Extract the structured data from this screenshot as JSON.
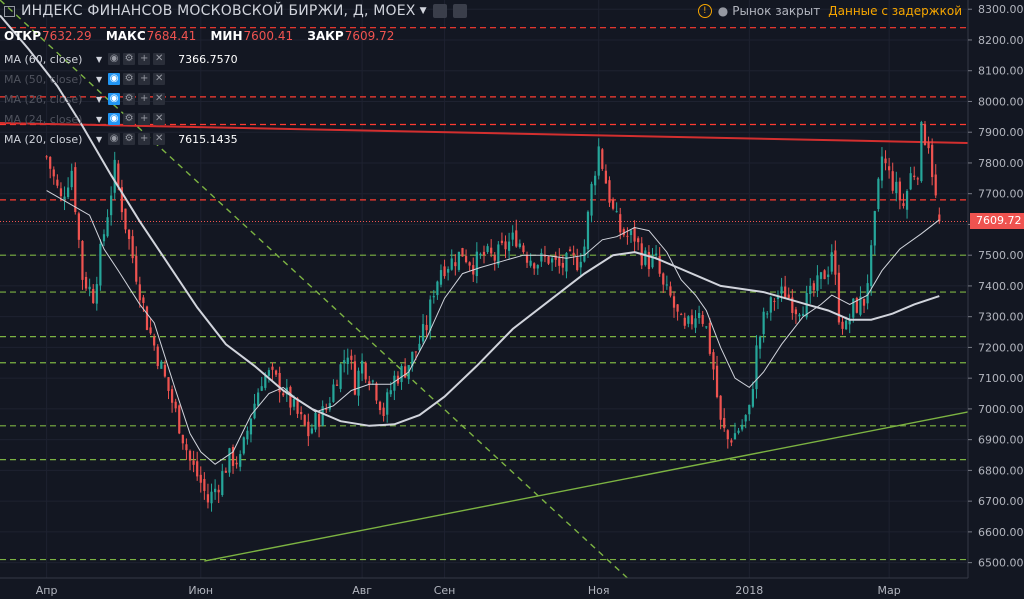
{
  "header": {
    "title": "ИНДЕКС ФИНАНСОВ МОСКОВСКОЙ БИРЖИ, Д, MOEX",
    "ohlc": [
      {
        "key": "ОТКР",
        "value": "7632.29"
      },
      {
        "key": "МАКС",
        "value": "7684.41"
      },
      {
        "key": "МИН",
        "value": "7600.41"
      },
      {
        "key": "ЗАКР",
        "value": "7609.72"
      }
    ]
  },
  "status": {
    "market": "Рынок закрыт",
    "delay": "Данные с задержкой"
  },
  "indicators": [
    {
      "name": "MA (60, close)",
      "value": "7366.7570",
      "visible": true
    },
    {
      "name": "MA (50, close)",
      "value": "",
      "visible": false
    },
    {
      "name": "MA (26, close)",
      "value": "",
      "visible": false
    },
    {
      "name": "MA (24, close)",
      "value": "",
      "visible": false
    },
    {
      "name": "MA (20, close)",
      "value": "7615.1435",
      "visible": true
    }
  ],
  "colors": {
    "background": "#131722",
    "up": "#26a69a",
    "down": "#ef5350",
    "ma": "#d1d4dc",
    "red_level": "#ff3b30",
    "green_level": "#7cb342",
    "trend_up": "#7cb342",
    "trend_down": "#d32f2f"
  },
  "chart_data": {
    "type": "candlestick",
    "instrument": "MOEX",
    "timeframe": "Д",
    "last_close": 7609.72,
    "last_price_label": "7609.72",
    "y_ticks": [
      6500,
      6600,
      6700,
      6800,
      6900,
      7000,
      7100,
      7200,
      7300,
      7400,
      7500,
      7600,
      7700,
      7800,
      7900,
      8000,
      8100,
      8200,
      8300
    ],
    "y_tick_labels": [
      "6500.00",
      "6600.00",
      "6700.00",
      "6800.00",
      "6900.00",
      "7000.00",
      "7100.00",
      "7200.00",
      "7300.00",
      "7400.00",
      "7500.00",
      "7600.00",
      "7700.00",
      "7800.00",
      "7900.00",
      "8000.00",
      "8100.00",
      "8200.00",
      "8300.00"
    ],
    "x_labels": [
      {
        "label": "Апр",
        "day": 0
      },
      {
        "label": "Июн",
        "day": 43
      },
      {
        "label": "Авг",
        "day": 88
      },
      {
        "label": "Сен",
        "day": 111
      },
      {
        "label": "Ноя",
        "day": 154
      },
      {
        "label": "2018",
        "day": 196
      },
      {
        "label": "Мар",
        "day": 235
      }
    ],
    "ylim": [
      6450,
      8330
    ],
    "xlim": [
      -13,
      257
    ],
    "red_levels": [
      8240,
      8015,
      7925,
      7680
    ],
    "green_levels": [
      7500,
      7380,
      7235,
      7150,
      6945,
      6835,
      6510
    ],
    "trendlines": [
      {
        "name": "support",
        "color": "green",
        "from": [
          44,
          6505
        ],
        "to": [
          257,
          6990
        ]
      },
      {
        "name": "resistance",
        "color": "red",
        "from": [
          -13,
          7930
        ],
        "to": [
          257,
          7865
        ]
      },
      {
        "name": "downtrend",
        "color": "green",
        "dashed": true,
        "from": [
          -13,
          8330
        ],
        "to": [
          162,
          6450
        ]
      }
    ],
    "price_path": [
      [
        0,
        7820
      ],
      [
        4,
        7680
      ],
      [
        7,
        7780
      ],
      [
        10,
        7430
      ],
      [
        13,
        7370
      ],
      [
        17,
        7640
      ],
      [
        19,
        7780
      ],
      [
        22,
        7600
      ],
      [
        25,
        7440
      ],
      [
        28,
        7280
      ],
      [
        31,
        7170
      ],
      [
        34,
        7060
      ],
      [
        37,
        6950
      ],
      [
        40,
        6830
      ],
      [
        43,
        6760
      ],
      [
        45,
        6700
      ],
      [
        48,
        6760
      ],
      [
        51,
        6840
      ],
      [
        54,
        6830
      ],
      [
        57,
        6980
      ],
      [
        60,
        7100
      ],
      [
        62,
        7110
      ],
      [
        65,
        7080
      ],
      [
        68,
        7020
      ],
      [
        70,
        6980
      ],
      [
        73,
        6920
      ],
      [
        75,
        6960
      ],
      [
        78,
        7000
      ],
      [
        81,
        7110
      ],
      [
        84,
        7190
      ],
      [
        86,
        7080
      ],
      [
        88,
        7150
      ],
      [
        91,
        7090
      ],
      [
        94,
        6990
      ],
      [
        97,
        7100
      ],
      [
        100,
        7130
      ],
      [
        103,
        7190
      ],
      [
        106,
        7270
      ],
      [
        108,
        7390
      ],
      [
        110,
        7460
      ],
      [
        113,
        7480
      ],
      [
        116,
        7510
      ],
      [
        119,
        7470
      ],
      [
        122,
        7500
      ],
      [
        125,
        7490
      ],
      [
        128,
        7530
      ],
      [
        131,
        7560
      ],
      [
        134,
        7500
      ],
      [
        137,
        7480
      ],
      [
        140,
        7490
      ],
      [
        143,
        7460
      ],
      [
        146,
        7480
      ],
      [
        148,
        7480
      ],
      [
        150,
        7530
      ],
      [
        152,
        7720
      ],
      [
        154,
        7850
      ],
      [
        156,
        7740
      ],
      [
        158,
        7640
      ],
      [
        160,
        7580
      ],
      [
        162,
        7560
      ],
      [
        164,
        7560
      ],
      [
        166,
        7500
      ],
      [
        168,
        7480
      ],
      [
        170,
        7480
      ],
      [
        172,
        7390
      ],
      [
        174,
        7360
      ],
      [
        176,
        7300
      ],
      [
        178,
        7250
      ],
      [
        180,
        7290
      ],
      [
        182,
        7330
      ],
      [
        184,
        7260
      ],
      [
        186,
        7130
      ],
      [
        188,
        6950
      ],
      [
        190,
        6900
      ],
      [
        192,
        6920
      ],
      [
        194,
        6950
      ],
      [
        196,
        6990
      ],
      [
        198,
        7190
      ],
      [
        200,
        7290
      ],
      [
        203,
        7360
      ],
      [
        206,
        7380
      ],
      [
        209,
        7330
      ],
      [
        212,
        7350
      ],
      [
        215,
        7400
      ],
      [
        218,
        7460
      ],
      [
        219,
        7520
      ],
      [
        221,
        7310
      ],
      [
        223,
        7260
      ],
      [
        225,
        7330
      ],
      [
        228,
        7350
      ],
      [
        230,
        7500
      ],
      [
        232,
        7720
      ],
      [
        233,
        7820
      ],
      [
        235,
        7760
      ],
      [
        237,
        7710
      ],
      [
        239,
        7660
      ],
      [
        241,
        7760
      ],
      [
        243,
        7780
      ],
      [
        244,
        7900
      ],
      [
        246,
        7870
      ],
      [
        248,
        7680
      ],
      [
        249,
        7609.72
      ]
    ],
    "ma20": [
      [
        0,
        7710
      ],
      [
        12,
        7630
      ],
      [
        16,
        7520
      ],
      [
        20,
        7450
      ],
      [
        26,
        7340
      ],
      [
        30,
        7280
      ],
      [
        36,
        7060
      ],
      [
        40,
        6920
      ],
      [
        43,
        6860
      ],
      [
        47,
        6820
      ],
      [
        52,
        6860
      ],
      [
        57,
        6980
      ],
      [
        62,
        7050
      ],
      [
        66,
        7070
      ],
      [
        70,
        7030
      ],
      [
        75,
        6990
      ],
      [
        80,
        7010
      ],
      [
        85,
        7060
      ],
      [
        90,
        7080
      ],
      [
        96,
        7080
      ],
      [
        101,
        7120
      ],
      [
        106,
        7230
      ],
      [
        111,
        7360
      ],
      [
        116,
        7440
      ],
      [
        121,
        7460
      ],
      [
        127,
        7480
      ],
      [
        133,
        7500
      ],
      [
        139,
        7500
      ],
      [
        145,
        7490
      ],
      [
        150,
        7500
      ],
      [
        155,
        7550
      ],
      [
        159,
        7560
      ],
      [
        164,
        7590
      ],
      [
        168,
        7580
      ],
      [
        173,
        7510
      ],
      [
        177,
        7420
      ],
      [
        181,
        7370
      ],
      [
        184,
        7320
      ],
      [
        188,
        7200
      ],
      [
        192,
        7100
      ],
      [
        196,
        7070
      ],
      [
        200,
        7120
      ],
      [
        205,
        7210
      ],
      [
        211,
        7300
      ],
      [
        216,
        7340
      ],
      [
        219,
        7370
      ],
      [
        224,
        7340
      ],
      [
        229,
        7370
      ],
      [
        233,
        7450
      ],
      [
        238,
        7520
      ],
      [
        244,
        7570
      ],
      [
        249,
        7615.14
      ]
    ],
    "ma60": [
      [
        -13,
        8280
      ],
      [
        -5,
        8170
      ],
      [
        3,
        8050
      ],
      [
        10,
        7920
      ],
      [
        18,
        7760
      ],
      [
        26,
        7610
      ],
      [
        34,
        7470
      ],
      [
        42,
        7330
      ],
      [
        50,
        7210
      ],
      [
        58,
        7140
      ],
      [
        66,
        7060
      ],
      [
        74,
        7000
      ],
      [
        82,
        6960
      ],
      [
        90,
        6945
      ],
      [
        97,
        6950
      ],
      [
        104,
        6980
      ],
      [
        111,
        7040
      ],
      [
        120,
        7140
      ],
      [
        130,
        7260
      ],
      [
        140,
        7350
      ],
      [
        150,
        7440
      ],
      [
        158,
        7500
      ],
      [
        164,
        7510
      ],
      [
        170,
        7490
      ],
      [
        176,
        7460
      ],
      [
        182,
        7430
      ],
      [
        188,
        7400
      ],
      [
        194,
        7390
      ],
      [
        200,
        7380
      ],
      [
        206,
        7360
      ],
      [
        212,
        7340
      ],
      [
        218,
        7320
      ],
      [
        224,
        7290
      ],
      [
        230,
        7290
      ],
      [
        236,
        7310
      ],
      [
        242,
        7340
      ],
      [
        249,
        7366.76
      ]
    ]
  }
}
